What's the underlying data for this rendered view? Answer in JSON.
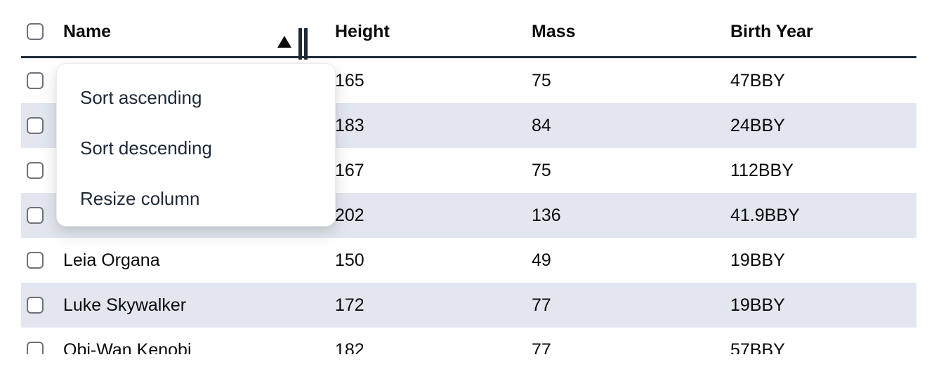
{
  "header": {
    "select_all_checkbox": {
      "checked": false
    },
    "columns": [
      {
        "label": "Name",
        "sorted": "ascending"
      },
      {
        "label": "Height"
      },
      {
        "label": "Mass"
      },
      {
        "label": "Birth Year"
      }
    ]
  },
  "rows": [
    {
      "name": "",
      "height": "165",
      "mass": "75",
      "birth_year": "47BBY",
      "checked": false
    },
    {
      "name": "",
      "height": "183",
      "mass": "84",
      "birth_year": "24BBY",
      "checked": false
    },
    {
      "name": "",
      "height": "167",
      "mass": "75",
      "birth_year": "112BBY",
      "checked": false
    },
    {
      "name": "",
      "height": "202",
      "mass": "136",
      "birth_year": "41.9BBY",
      "checked": false
    },
    {
      "name": "Leia Organa",
      "height": "150",
      "mass": "49",
      "birth_year": "19BBY",
      "checked": false
    },
    {
      "name": "Luke Skywalker",
      "height": "172",
      "mass": "77",
      "birth_year": "19BBY",
      "checked": false
    },
    {
      "name": "Obi-Wan Kenobi",
      "height": "182",
      "mass": "77",
      "birth_year": "57BBY",
      "checked": false
    }
  ],
  "context_menu": {
    "items": [
      {
        "label": "Sort ascending"
      },
      {
        "label": "Sort descending"
      },
      {
        "label": "Resize column"
      }
    ]
  },
  "icons": {
    "sort_ascending_icon": "triangle-up",
    "column_resize_handle_icon": "double-vertical-bar",
    "checkbox_icon": "rounded-square-unchecked"
  },
  "colors": {
    "stripe": "#e2e7ef",
    "header_border": "#1f2937",
    "table_text": "#0a0a0b",
    "menu_text": "#1e2939",
    "checkbox_border": "#71717a",
    "menu_border": "#ebebeb"
  }
}
